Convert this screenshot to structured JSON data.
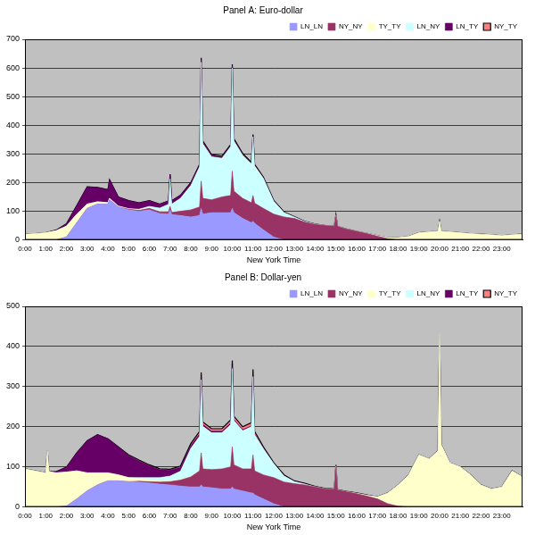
{
  "chart_data": [
    {
      "type": "area",
      "title": "Panel A: Euro-dollar",
      "x_label": "New York Time",
      "x": [
        0,
        0.5,
        1,
        1.5,
        2,
        2.5,
        3,
        3.5,
        4,
        4.08,
        4.5,
        5,
        5.5,
        6,
        6.5,
        6.92,
        7,
        7.08,
        7.5,
        8,
        8.42,
        8.5,
        8.58,
        9,
        9.5,
        9.92,
        10,
        10.08,
        10.5,
        10.92,
        11,
        11.08,
        11.5,
        12,
        12.5,
        13,
        13.5,
        14,
        14.5,
        14.92,
        15,
        15.08,
        15.5,
        16,
        16.5,
        17,
        17.5,
        18,
        18.5,
        19,
        19.5,
        19.92,
        20,
        20.08,
        20.5,
        21,
        21.5,
        22,
        22.5,
        23,
        23.5,
        24
      ],
      "xlim": [
        0,
        24
      ],
      "xticks": [
        {
          "value": 0,
          "label": "0:00"
        },
        {
          "value": 1,
          "label": "1:00"
        },
        {
          "value": 2,
          "label": "2:00"
        },
        {
          "value": 3,
          "label": "3:00"
        },
        {
          "value": 4,
          "label": "4:00"
        },
        {
          "value": 5,
          "label": "5:00"
        },
        {
          "value": 6,
          "label": "6:00"
        },
        {
          "value": 7,
          "label": "7:00"
        },
        {
          "value": 8,
          "label": "8:00"
        },
        {
          "value": 9,
          "label": "9:00"
        },
        {
          "value": 10,
          "label": "10:00"
        },
        {
          "value": 11,
          "label": "11:00"
        },
        {
          "value": 12,
          "label": "12:00"
        },
        {
          "value": 13,
          "label": "13:00"
        },
        {
          "value": 14,
          "label": "14:00"
        },
        {
          "value": 15,
          "label": "15:00"
        },
        {
          "value": 16,
          "label": "16:00"
        },
        {
          "value": 17,
          "label": "17:00"
        },
        {
          "value": 18,
          "label": "18:00"
        },
        {
          "value": 19,
          "label": "19:00"
        },
        {
          "value": 20,
          "label": "20:00"
        },
        {
          "value": 21,
          "label": "21:00"
        },
        {
          "value": 22,
          "label": "22:00"
        },
        {
          "value": 23,
          "label": "23:00"
        }
      ],
      "ylim": [
        0,
        700
      ],
      "yticks": [
        0,
        100,
        200,
        300,
        400,
        500,
        600,
        700
      ],
      "grid": true,
      "stacked": true,
      "legend": "upper right",
      "series": [
        {
          "name": "LN_LN",
          "color": "#9999ff",
          "values": [
            0,
            0,
            0,
            0,
            10,
            60,
            110,
            125,
            125,
            140,
            115,
            105,
            100,
            105,
            92,
            90,
            105,
            88,
            85,
            80,
            85,
            110,
            90,
            95,
            95,
            95,
            110,
            95,
            75,
            60,
            65,
            58,
            35,
            10,
            0,
            0,
            0,
            0,
            0,
            0,
            0,
            0,
            0,
            0,
            0,
            0,
            0,
            0,
            0,
            0,
            0,
            0,
            0,
            0,
            0,
            0,
            0,
            0,
            0,
            0,
            0,
            0
          ]
        },
        {
          "name": "NY_NY",
          "color": "#993366",
          "values": [
            0,
            0,
            0,
            0,
            0,
            0,
            0,
            0,
            0,
            0,
            0,
            2,
            3,
            5,
            6,
            8,
            12,
            8,
            15,
            25,
            30,
            95,
            55,
            45,
            55,
            60,
            130,
            75,
            70,
            70,
            90,
            70,
            75,
            80,
            80,
            75,
            62,
            54,
            50,
            48,
            85,
            47,
            38,
            30,
            22,
            13,
            4,
            0,
            0,
            0,
            0,
            0,
            0,
            0,
            0,
            0,
            0,
            0,
            0,
            0,
            0,
            0
          ]
        },
        {
          "name": "TY_TY",
          "color": "#ffffcc",
          "values": [
            20,
            22,
            25,
            32,
            38,
            30,
            15,
            8,
            5,
            5,
            3,
            2,
            2,
            2,
            1,
            1,
            1,
            1,
            0,
            0,
            0,
            0,
            0,
            0,
            0,
            0,
            0,
            0,
            0,
            0,
            0,
            0,
            0,
            0,
            0,
            0,
            0,
            0,
            0,
            0,
            0,
            0,
            0,
            0,
            1,
            2,
            4,
            8,
            12,
            25,
            28,
            30,
            65,
            30,
            28,
            25,
            22,
            20,
            18,
            15,
            18,
            20
          ]
        },
        {
          "name": "LN_NY",
          "color": "#ccffff",
          "values": [
            0,
            0,
            0,
            0,
            0,
            0,
            0,
            0,
            0,
            0,
            0,
            0,
            2,
            5,
            12,
            25,
            95,
            28,
            45,
            85,
            140,
            415,
            190,
            150,
            135,
            170,
            360,
            175,
            150,
            135,
            205,
            130,
            105,
            45,
            15,
            5,
            2,
            1,
            0,
            0,
            2,
            0,
            0,
            0,
            0,
            0,
            0,
            0,
            0,
            0,
            0,
            0,
            0,
            0,
            0,
            0,
            0,
            0,
            0,
            0,
            0,
            0
          ]
        },
        {
          "name": "LN_TY",
          "color": "#660066",
          "values": [
            0,
            0,
            0,
            2,
            8,
            30,
            60,
            50,
            45,
            65,
            32,
            28,
            22,
            20,
            14,
            12,
            15,
            12,
            10,
            8,
            6,
            10,
            6,
            5,
            4,
            4,
            5,
            4,
            3,
            2,
            3,
            2,
            1,
            0,
            0,
            0,
            0,
            0,
            0,
            0,
            0,
            0,
            0,
            0,
            0,
            0,
            0,
            0,
            0,
            0,
            0,
            0,
            0,
            0,
            0,
            0,
            0,
            0,
            0,
            0,
            0,
            0
          ]
        },
        {
          "name": "NY_TY",
          "color": "#ff8080",
          "values": [
            0,
            0,
            0,
            0,
            0,
            0,
            0,
            0,
            0,
            0,
            0,
            0,
            0,
            0,
            0,
            0,
            1,
            0,
            1,
            2,
            3,
            5,
            4,
            3,
            3,
            4,
            8,
            4,
            4,
            4,
            5,
            3,
            3,
            3,
            2,
            1,
            1,
            0,
            0,
            0,
            1,
            0,
            0,
            0,
            0,
            0,
            0,
            0,
            0,
            0,
            0,
            0,
            0,
            0,
            0,
            0,
            0,
            0,
            0,
            0,
            0,
            0
          ]
        }
      ]
    },
    {
      "type": "area",
      "title": "Panel B: Dollar-yen",
      "x_label": "New York Time",
      "x": [
        0,
        0.5,
        1,
        1.08,
        1.16,
        1.5,
        2,
        2.5,
        3,
        3.5,
        4,
        4.5,
        5,
        5.5,
        6,
        6.5,
        7,
        7.5,
        8,
        8.42,
        8.5,
        8.58,
        9,
        9.5,
        9.92,
        10,
        10.08,
        10.5,
        10.92,
        11,
        11.08,
        11.5,
        12,
        12.5,
        13,
        13.5,
        14,
        14.5,
        14.92,
        15,
        15.08,
        15.5,
        16,
        16.5,
        17,
        17.5,
        18,
        18.5,
        19,
        19.5,
        19.92,
        20,
        20.08,
        20.5,
        21,
        21.5,
        22,
        22.5,
        23,
        23.5,
        24
      ],
      "xlim": [
        0,
        24
      ],
      "xticks": [
        {
          "value": 0,
          "label": "0:00"
        },
        {
          "value": 1,
          "label": "1:00"
        },
        {
          "value": 2,
          "label": "2:00"
        },
        {
          "value": 3,
          "label": "3:00"
        },
        {
          "value": 4,
          "label": "4:00"
        },
        {
          "value": 5,
          "label": "5:00"
        },
        {
          "value": 6,
          "label": "6:00"
        },
        {
          "value": 7,
          "label": "7:00"
        },
        {
          "value": 8,
          "label": "8:00"
        },
        {
          "value": 9,
          "label": "9:00"
        },
        {
          "value": 10,
          "label": "10:00"
        },
        {
          "value": 11,
          "label": "11:00"
        },
        {
          "value": 12,
          "label": "12:00"
        },
        {
          "value": 13,
          "label": "13:00"
        },
        {
          "value": 14,
          "label": "14:00"
        },
        {
          "value": 15,
          "label": "15:00"
        },
        {
          "value": 16,
          "label": "16:00"
        },
        {
          "value": 17,
          "label": "17:00"
        },
        {
          "value": 18,
          "label": "18:00"
        },
        {
          "value": 19,
          "label": "19:00"
        },
        {
          "value": 20,
          "label": "20:00"
        },
        {
          "value": 21,
          "label": "21:00"
        },
        {
          "value": 22,
          "label": "22:00"
        },
        {
          "value": 23,
          "label": "23:00"
        }
      ],
      "ylim": [
        0,
        500
      ],
      "yticks": [
        0,
        100,
        200,
        300,
        400,
        500
      ],
      "grid": true,
      "stacked": true,
      "legend": "upper right",
      "series": [
        {
          "name": "LN_LN",
          "color": "#9999ff",
          "values": [
            0,
            0,
            0,
            0,
            0,
            0,
            2,
            20,
            40,
            55,
            65,
            65,
            63,
            62,
            60,
            57,
            55,
            52,
            50,
            50,
            55,
            50,
            48,
            45,
            45,
            50,
            45,
            40,
            35,
            35,
            30,
            20,
            8,
            0,
            0,
            0,
            0,
            0,
            0,
            0,
            0,
            0,
            0,
            0,
            0,
            0,
            0,
            0,
            0,
            0,
            0,
            0,
            0,
            0,
            0,
            0,
            0,
            0,
            0,
            0,
            0
          ]
        },
        {
          "name": "NY_NY",
          "color": "#993366",
          "values": [
            0,
            0,
            0,
            0,
            0,
            0,
            0,
            0,
            0,
            0,
            0,
            0,
            0,
            2,
            3,
            5,
            8,
            15,
            25,
            40,
            80,
            45,
            45,
            50,
            55,
            100,
            60,
            55,
            60,
            95,
            60,
            60,
            65,
            62,
            58,
            55,
            50,
            45,
            44,
            100,
            42,
            38,
            33,
            27,
            20,
            8,
            2,
            0,
            0,
            0,
            0,
            0,
            0,
            0,
            0,
            0,
            0,
            0,
            0,
            0,
            0
          ]
        },
        {
          "name": "TY_TY",
          "color": "#ffffcc",
          "values": [
            95,
            90,
            85,
            140,
            88,
            85,
            85,
            70,
            45,
            30,
            20,
            15,
            10,
            7,
            5,
            3,
            2,
            2,
            1,
            1,
            2,
            1,
            0,
            0,
            0,
            0,
            0,
            0,
            0,
            0,
            0,
            0,
            0,
            0,
            0,
            0,
            0,
            0,
            0,
            0,
            0,
            0,
            1,
            2,
            5,
            27,
            53,
            80,
            130,
            120,
            140,
            435,
            155,
            110,
            100,
            80,
            55,
            45,
            50,
            90,
            75
          ]
        },
        {
          "name": "LN_NY",
          "color": "#ccffff",
          "values": [
            0,
            0,
            0,
            0,
            0,
            0,
            0,
            0,
            0,
            0,
            0,
            0,
            0,
            2,
            5,
            8,
            12,
            20,
            70,
            85,
            180,
            105,
            92,
            90,
            105,
            195,
            110,
            95,
            105,
            195,
            90,
            65,
            35,
            15,
            5,
            2,
            0,
            0,
            0,
            2,
            0,
            0,
            0,
            0,
            0,
            0,
            0,
            0,
            0,
            0,
            0,
            0,
            0,
            0,
            0,
            0,
            0,
            0,
            0,
            0,
            0
          ]
        },
        {
          "name": "LN_TY",
          "color": "#660066",
          "values": [
            0,
            0,
            0,
            0,
            0,
            3,
            12,
            45,
            80,
            95,
            85,
            70,
            55,
            42,
            30,
            20,
            15,
            10,
            7,
            6,
            8,
            5,
            4,
            4,
            4,
            5,
            3,
            3,
            2,
            3,
            2,
            1,
            0,
            0,
            0,
            0,
            0,
            0,
            0,
            0,
            0,
            0,
            0,
            0,
            0,
            0,
            0,
            0,
            0,
            0,
            0,
            0,
            0,
            0,
            0,
            0,
            0,
            0,
            0,
            0,
            0
          ]
        },
        {
          "name": "NY_TY",
          "color": "#ff8080",
          "values": [
            0,
            0,
            0,
            0,
            0,
            0,
            0,
            0,
            0,
            0,
            0,
            0,
            2,
            2,
            2,
            2,
            2,
            3,
            5,
            6,
            10,
            6,
            6,
            6,
            8,
            15,
            8,
            7,
            8,
            15,
            6,
            4,
            2,
            3,
            2,
            2,
            1,
            1,
            1,
            3,
            1,
            1,
            1,
            1,
            0,
            0,
            0,
            0,
            0,
            0,
            0,
            0,
            0,
            0,
            0,
            0,
            0,
            0,
            0,
            0,
            0
          ]
        }
      ]
    }
  ]
}
